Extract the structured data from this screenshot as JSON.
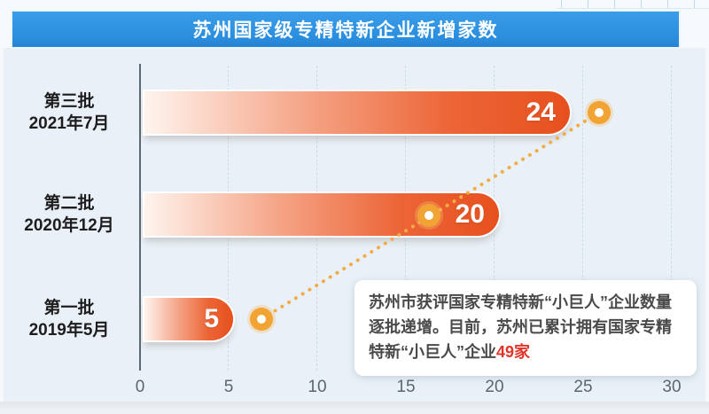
{
  "header": {
    "title": "苏州国家级专精特新企业新增家数"
  },
  "chart_data": {
    "type": "bar",
    "orientation": "horizontal",
    "title": "苏州国家级专精特新企业新增家数",
    "categories": [
      "第三批 2021年7月",
      "第二批 2020年12月",
      "第一批 2019年5月"
    ],
    "values": [
      24,
      20,
      5
    ],
    "xlim": [
      0,
      30
    ],
    "x_tick_labels": [
      "0",
      "5",
      "10",
      "15",
      "20",
      "25",
      "30"
    ],
    "grid": "vertical-dashed",
    "legend": "none",
    "trend_line": "dotted line with circular markers rising from batch 1 to batch 3"
  },
  "rows": [
    {
      "batch": "第三批",
      "date": "2021年7月",
      "value": "24"
    },
    {
      "batch": "第二批",
      "date": "2020年12月",
      "value": "20"
    },
    {
      "batch": "第一批",
      "date": "2019年5月",
      "value": "5"
    }
  ],
  "x_axis": {
    "ticks": [
      "0",
      "5",
      "10",
      "15",
      "20",
      "25",
      "30"
    ]
  },
  "annotation": {
    "text": "苏州市获评国家专精特新“小巨人”企业数量逐批递增。目前，苏州已累计拥有国家专精特新“小巨人”企业",
    "highlight": "49家"
  },
  "colors": {
    "banner_blue": "#2b8fe0",
    "chart_background": "#e9f0f7",
    "bar_gradient_start": "#fef4ee",
    "bar_gradient_end": "#e7501e",
    "trend_dot_orange": "#f1a433",
    "highlight_red": "#e23428",
    "axis_text": "#5a6570"
  }
}
